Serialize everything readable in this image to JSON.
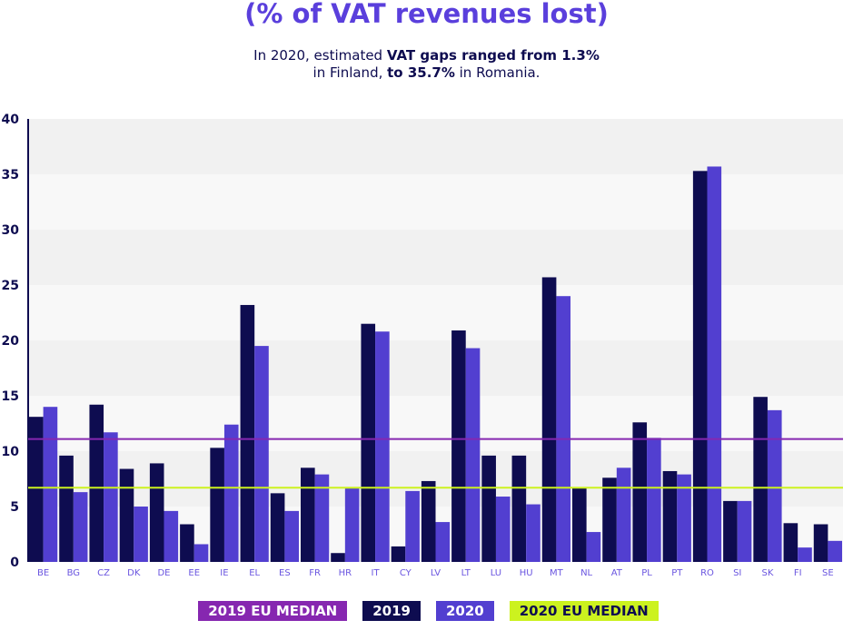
{
  "title": "(% of VAT revenues lost)",
  "subtitle": {
    "line1_pre": "In 2020, estimated ",
    "line1_bold": "VAT gaps ranged from 1.3%",
    "line2_pre": "in Finland, ",
    "line2_bold": "to 35.7%",
    "line2_post": " in Romania."
  },
  "colors": {
    "s2019": "#0e0c50",
    "s2020": "#523fd0",
    "median2019": "#8627b0",
    "median2020": "#ccf21f",
    "tick": "#0e0c50",
    "xtick": "#6a55e0"
  },
  "chart_data": {
    "type": "bar",
    "title": "(% of VAT revenues lost)",
    "xlabel": "",
    "ylabel": "",
    "ylim": [
      0,
      40
    ],
    "yticks": [
      0,
      5,
      10,
      15,
      20,
      25,
      30,
      35,
      40
    ],
    "categories": [
      "BE",
      "BG",
      "CZ",
      "DK",
      "DE",
      "EE",
      "IE",
      "EL",
      "ES",
      "FR",
      "HR",
      "IT",
      "CY",
      "LV",
      "LT",
      "LU",
      "HU",
      "MT",
      "NL",
      "AT",
      "PL",
      "PT",
      "RO",
      "SI",
      "SK",
      "FI",
      "SE"
    ],
    "series": [
      {
        "name": "2019",
        "values": [
          13.1,
          9.6,
          14.2,
          8.4,
          8.9,
          3.4,
          10.3,
          23.2,
          6.2,
          8.5,
          0.8,
          21.5,
          1.4,
          7.3,
          20.9,
          9.6,
          9.6,
          25.7,
          6.7,
          7.6,
          12.6,
          8.2,
          35.3,
          5.5,
          14.9,
          3.5,
          3.4
        ]
      },
      {
        "name": "2020",
        "values": [
          14.0,
          6.3,
          11.7,
          5.0,
          4.6,
          1.6,
          12.4,
          19.5,
          4.6,
          7.9,
          6.7,
          20.8,
          6.4,
          3.6,
          19.3,
          5.9,
          5.2,
          24.0,
          2.7,
          8.5,
          11.2,
          7.9,
          35.7,
          5.5,
          13.7,
          1.3,
          1.9
        ]
      }
    ],
    "reference_lines": [
      {
        "name": "2019 EU MEDIAN",
        "value": 11.1
      },
      {
        "name": "2020 EU MEDIAN",
        "value": 6.7
      }
    ],
    "legend": {
      "placement": "bottom",
      "items": [
        "2019 EU MEDIAN",
        "2019",
        "2020",
        "2020 EU MEDIAN"
      ]
    },
    "grid": "alternating horizontal bands"
  }
}
